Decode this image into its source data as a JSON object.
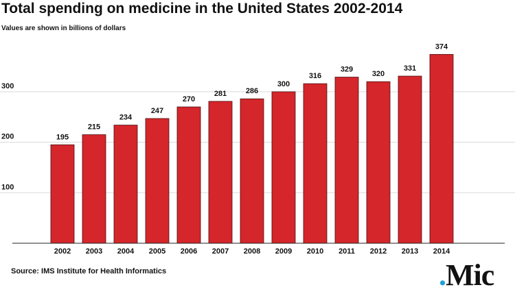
{
  "title": "Total spending on medicine in the United States 2002-2014",
  "subtitle": "Values are shown in billions of dollars",
  "source": "Source: IMS Institute for Health Informatics",
  "logo": {
    "dot": ".",
    "text": "Mic",
    "dot_color": "#1fa0d8"
  },
  "colors": {
    "bar": "#d4262b",
    "bar_outline": "#4a0f10",
    "grid": "#d9d9d9",
    "axis": "#222222"
  },
  "chart_data": {
    "type": "bar",
    "title": "Total spending on medicine in the United States 2002-2014",
    "subtitle": "Values are shown in billions of dollars",
    "xlabel": "",
    "ylabel": "",
    "categories": [
      "2002",
      "2003",
      "2004",
      "2005",
      "2006",
      "2007",
      "2008",
      "2009",
      "2010",
      "2011",
      "2012",
      "2013",
      "2014"
    ],
    "values": [
      195,
      215,
      234,
      247,
      270,
      281,
      286,
      300,
      316,
      329,
      320,
      331,
      374
    ],
    "yticks": [
      100,
      200,
      300
    ],
    "ylim": [
      0,
      400
    ],
    "grid": true,
    "data_labels": true
  }
}
